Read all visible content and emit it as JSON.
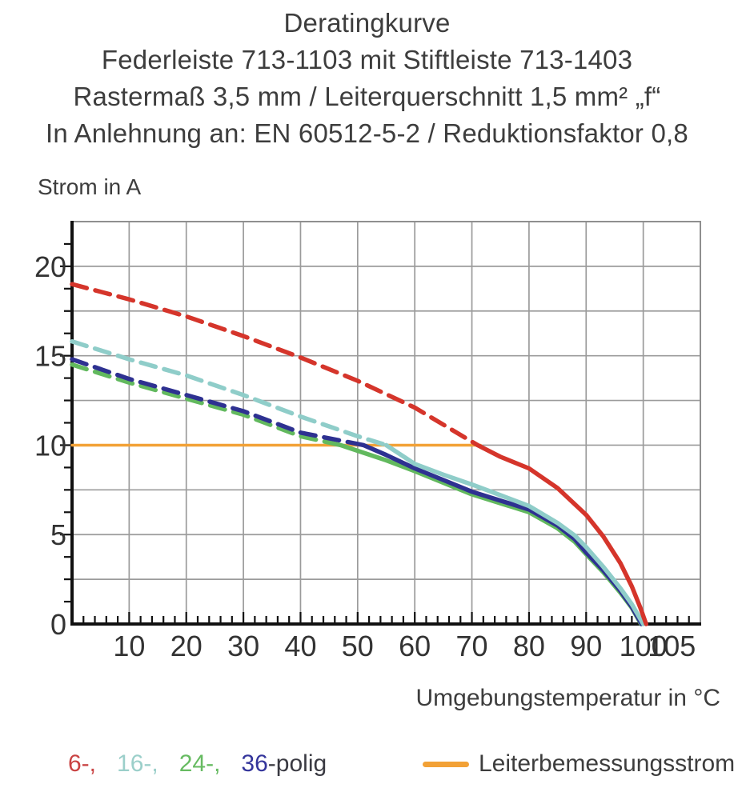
{
  "title": {
    "lines": [
      "Deratingkurve",
      "Federleiste 713-1103 mit Stiftleiste 713-1403",
      "Rastermaß 3,5 mm / Leiterquerschnitt 1,5 mm² „f“",
      "In Anlehnung an: EN 60512-5-2 / Reduktionsfaktor 0,8"
    ]
  },
  "axes": {
    "y_label": "Strom in A",
    "x_label": "Umgebungstemperatur in °C"
  },
  "legend": {
    "poles": [
      {
        "text": "6-,",
        "color": "#c94343"
      },
      {
        "text": "16-,",
        "color": "#9bcfca"
      },
      {
        "text": "24-,",
        "color": "#67bb62"
      },
      {
        "text": "36",
        "color": "#34359b"
      },
      {
        "text": "-polig",
        "color": "#3a3a42"
      }
    ],
    "rated": {
      "label": "Leiterbemessungsstrom",
      "color": "#f2a136"
    }
  },
  "colors": {
    "grid": "#9b9b9b",
    "frame": "#8f8f8f",
    "axis": "#111111",
    "tick_text": "#333333"
  },
  "chart_data": {
    "type": "line",
    "title": "Deratingkurve",
    "xlabel": "Umgebungstemperatur in °C",
    "ylabel": "Strom in A",
    "xlim": [
      0,
      110
    ],
    "ylim": [
      0,
      22.5
    ],
    "xticks": [
      10,
      20,
      30,
      40,
      50,
      60,
      70,
      80,
      90,
      100,
      105
    ],
    "yticks": [
      0,
      5,
      10,
      15,
      20
    ],
    "grid": {
      "x_step": 10,
      "y_step": 2.5
    },
    "minor_ticks": {
      "x_step": 2,
      "y_step": 1.25
    },
    "legend_position": "bottom",
    "rated_line": {
      "name": "Leiterbemessungsstrom",
      "color": "#f2a136",
      "value": 10,
      "x_range": [
        0,
        71.5
      ]
    },
    "series": [
      {
        "name": "24-polig",
        "color": "#62b95e",
        "dashed": [
          [
            0,
            14.5
          ],
          [
            10,
            13.5
          ],
          [
            20,
            12.6
          ],
          [
            30,
            11.7
          ],
          [
            40,
            10.5
          ],
          [
            47,
            10.0
          ]
        ],
        "solid": [
          [
            47,
            10.0
          ],
          [
            55,
            9.15
          ],
          [
            60,
            8.55
          ],
          [
            65,
            7.9
          ],
          [
            70,
            7.25
          ],
          [
            75,
            6.75
          ],
          [
            80,
            6.25
          ],
          [
            85,
            5.35
          ],
          [
            88,
            4.6
          ],
          [
            90,
            3.9
          ],
          [
            93,
            2.9
          ],
          [
            96,
            1.75
          ],
          [
            98,
            0.9
          ],
          [
            99.6,
            0
          ]
        ]
      },
      {
        "name": "36-polig",
        "color": "#2e3191",
        "dashed": [
          [
            0,
            14.8
          ],
          [
            10,
            13.7
          ],
          [
            20,
            12.8
          ],
          [
            30,
            11.9
          ],
          [
            40,
            10.7
          ],
          [
            51,
            10.0
          ]
        ],
        "solid": [
          [
            51,
            10.0
          ],
          [
            55,
            9.45
          ],
          [
            60,
            8.7
          ],
          [
            65,
            8.05
          ],
          [
            70,
            7.4
          ],
          [
            75,
            6.9
          ],
          [
            80,
            6.4
          ],
          [
            85,
            5.5
          ],
          [
            88,
            4.75
          ],
          [
            90,
            4.0
          ],
          [
            93,
            3.0
          ],
          [
            96,
            1.85
          ],
          [
            98,
            0.95
          ],
          [
            99.7,
            0
          ]
        ]
      },
      {
        "name": "16-polig",
        "color": "#8fcdc9",
        "dashed": [
          [
            0,
            15.8
          ],
          [
            10,
            14.8
          ],
          [
            20,
            13.9
          ],
          [
            30,
            12.8
          ],
          [
            40,
            11.6
          ],
          [
            50,
            10.5
          ],
          [
            55,
            10.0
          ]
        ],
        "solid": [
          [
            55,
            10.0
          ],
          [
            60,
            8.95
          ],
          [
            65,
            8.35
          ],
          [
            70,
            7.8
          ],
          [
            75,
            7.2
          ],
          [
            80,
            6.6
          ],
          [
            85,
            5.65
          ],
          [
            88,
            4.95
          ],
          [
            90,
            4.3
          ],
          [
            93,
            3.2
          ],
          [
            96,
            2.0
          ],
          [
            98,
            1.1
          ],
          [
            100,
            0
          ]
        ]
      },
      {
        "name": "6-polig",
        "color": "#d5352b",
        "dashed": [
          [
            0,
            19.0
          ],
          [
            10,
            18.15
          ],
          [
            20,
            17.2
          ],
          [
            30,
            16.1
          ],
          [
            40,
            14.9
          ],
          [
            50,
            13.6
          ],
          [
            60,
            12.1
          ],
          [
            71,
            10.0
          ]
        ],
        "solid": [
          [
            71,
            10.0
          ],
          [
            75,
            9.35
          ],
          [
            80,
            8.7
          ],
          [
            85,
            7.6
          ],
          [
            90,
            6.1
          ],
          [
            93,
            4.9
          ],
          [
            96,
            3.4
          ],
          [
            98,
            2.1
          ],
          [
            99.5,
            0.9
          ],
          [
            100.5,
            0
          ]
        ]
      }
    ]
  }
}
